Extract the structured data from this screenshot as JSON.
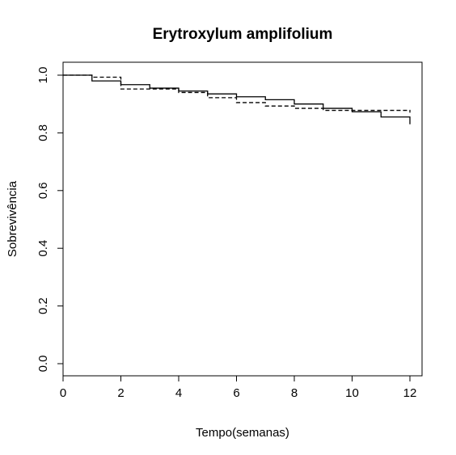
{
  "chart_data": {
    "type": "line",
    "title": "Erytroxylum amplifolium",
    "xlabel": "Tempo(semanas)",
    "ylabel": "Sobrevivência",
    "xlim": [
      0,
      12
    ],
    "ylim": [
      0,
      1
    ],
    "xticks": [
      "0",
      "2",
      "4",
      "6",
      "8",
      "10",
      "12"
    ],
    "yticks": [
      "0.0",
      "0.2",
      "0.4",
      "0.6",
      "0.8",
      "1.0"
    ],
    "legend": "none",
    "grid": false,
    "series": [
      {
        "linestyle": "solid",
        "step": true,
        "x": [
          0,
          1,
          2,
          3,
          4,
          5,
          6,
          7,
          8,
          9,
          10,
          11,
          12
        ],
        "y": [
          1.0,
          0.98,
          0.967,
          0.955,
          0.945,
          0.935,
          0.925,
          0.915,
          0.9,
          0.885,
          0.873,
          0.855,
          0.83
        ]
      },
      {
        "linestyle": "dashed",
        "step": true,
        "x": [
          0,
          1,
          2,
          3,
          4,
          5,
          6,
          7,
          8,
          9,
          10,
          11,
          12
        ],
        "y": [
          1.0,
          0.993,
          0.952,
          0.952,
          0.94,
          0.922,
          0.905,
          0.893,
          0.885,
          0.878,
          0.878,
          0.878,
          0.87
        ]
      }
    ]
  }
}
